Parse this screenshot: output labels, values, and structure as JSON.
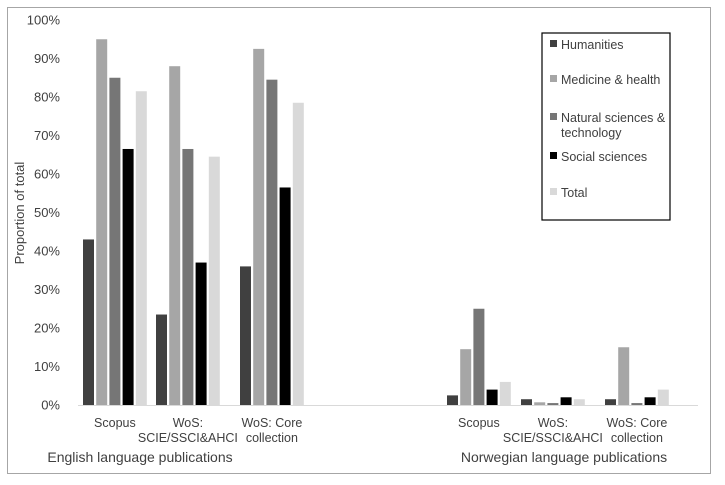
{
  "chart_data": {
    "type": "bar",
    "ylabel": "Proportion of total",
    "ylim": [
      0,
      100
    ],
    "yticks": [
      "0%",
      "10%",
      "20%",
      "30%",
      "40%",
      "50%",
      "60%",
      "70%",
      "80%",
      "90%",
      "100%"
    ],
    "grid": false,
    "legend_position": "top-right",
    "groups": [
      {
        "label": "English language publications",
        "categories": [
          {
            "lines": [
              "Scopus"
            ],
            "values": [
              43,
              95,
              85,
              66.5,
              81.5
            ]
          },
          {
            "lines": [
              "WoS:",
              "SCIE/SSCI&AHCI"
            ],
            "values": [
              23.5,
              88,
              66.5,
              37,
              64.5
            ]
          },
          {
            "lines": [
              "WoS: Core",
              "collection"
            ],
            "values": [
              36,
              92.5,
              84.5,
              56.5,
              78.5
            ]
          }
        ]
      },
      {
        "label": "Norwegian language publications",
        "categories": [
          {
            "lines": [
              "Scopus"
            ],
            "values": [
              2.5,
              14.5,
              25,
              4,
              6
            ]
          },
          {
            "lines": [
              "WoS:",
              "SCIE/SSCI&AHCI"
            ],
            "values": [
              1.5,
              0.7,
              0.5,
              2,
              1.5
            ]
          },
          {
            "lines": [
              "WoS: Core",
              "collection"
            ],
            "values": [
              1.5,
              15,
              0.5,
              2,
              4
            ]
          }
        ]
      }
    ],
    "series": [
      {
        "name": "Humanities",
        "color": "#404040"
      },
      {
        "name": "Medicine & health",
        "color": "#a6a6a6"
      },
      {
        "name": "Natural sciences & technology",
        "color": "#767676"
      },
      {
        "name": "Social sciences",
        "color": "#000000"
      },
      {
        "name": "Total",
        "color": "#d9d9d9"
      }
    ],
    "legend_lines": [
      [
        "Humanities"
      ],
      [
        "Medicine & health"
      ],
      [
        "Natural sciences &",
        "technology"
      ],
      [
        "Social sciences"
      ],
      [
        "Total"
      ]
    ]
  }
}
